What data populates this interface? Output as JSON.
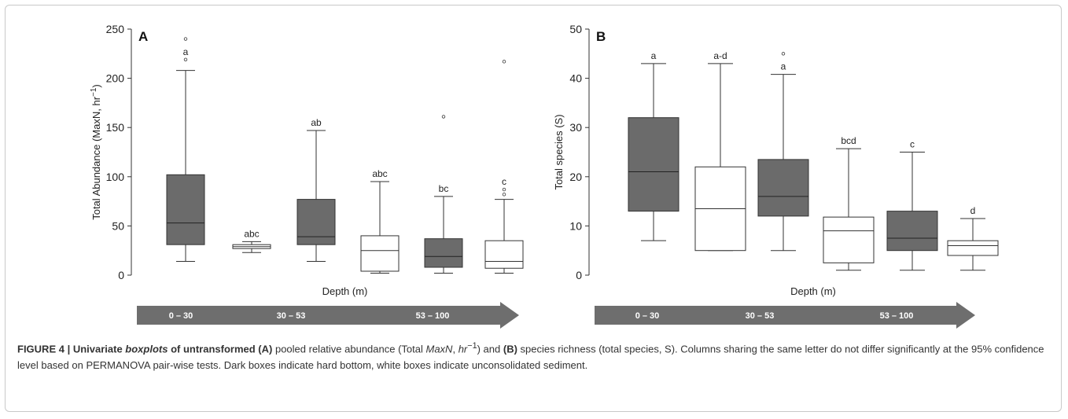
{
  "colors": {
    "hard_bottom": "#6b6b6b",
    "sediment": "#ffffff",
    "arrow": "#6e6e6e"
  },
  "chart_data": [
    {
      "type": "box",
      "panel_label": "A",
      "ylabel": "Total Abundance (MaxN, hr",
      "ylabel_sup": "−1",
      "ylabel_close": ")",
      "xlabel": "Depth (m)",
      "ylim": [
        0,
        250
      ],
      "yticks": [
        0,
        50,
        100,
        150,
        200,
        250
      ],
      "depth_bins": [
        "0 – 30",
        "30 – 53",
        "53 – 100"
      ],
      "series": [
        {
          "depth": "0 – 30",
          "substrate": "hard bottom",
          "min": 14,
          "q1": 31,
          "median": 53,
          "q3": 102,
          "max": 208,
          "outliers": [
            240,
            219
          ],
          "letter": "a"
        },
        {
          "depth": "0 – 30",
          "substrate": "unconsolidated sediment",
          "min": 23,
          "q1": 27,
          "median": 29,
          "q3": 31,
          "max": 34,
          "outliers": [],
          "letter": "abc"
        },
        {
          "depth": "30 – 53",
          "substrate": "hard bottom",
          "min": 14,
          "q1": 31,
          "median": 39,
          "q3": 77,
          "max": 147,
          "outliers": [],
          "letter": "ab"
        },
        {
          "depth": "30 – 53",
          "substrate": "unconsolidated sediment",
          "min": 2,
          "q1": 4,
          "median": 25,
          "q3": 40,
          "max": 95,
          "outliers": [],
          "letter": "abc"
        },
        {
          "depth": "53 – 100",
          "substrate": "hard bottom",
          "min": 2,
          "q1": 8,
          "median": 19,
          "q3": 37,
          "max": 80,
          "outliers": [
            161
          ],
          "letter": "bc"
        },
        {
          "depth": "53 – 100",
          "substrate": "unconsolidated sediment",
          "min": 2,
          "q1": 7,
          "median": 14,
          "q3": 35,
          "max": 77,
          "outliers": [
            87,
            82,
            217
          ],
          "letter": "c"
        }
      ]
    },
    {
      "type": "box",
      "panel_label": "B",
      "ylabel": "Total species (S)",
      "xlabel": "Depth (m)",
      "ylim": [
        0,
        50
      ],
      "yticks": [
        0,
        10,
        20,
        30,
        40,
        50
      ],
      "depth_bins": [
        "0 – 30",
        "30 – 53",
        "53 – 100"
      ],
      "series": [
        {
          "depth": "0 – 30",
          "substrate": "hard bottom",
          "min": 7,
          "q1": 13,
          "median": 21,
          "q3": 32,
          "max": 43,
          "outliers": [],
          "letter": "a"
        },
        {
          "depth": "0 – 30",
          "substrate": "unconsolidated sediment",
          "min": 5,
          "q1": 5,
          "median": 13.5,
          "q3": 22,
          "max": 43,
          "outliers": [],
          "letter": "a-d"
        },
        {
          "depth": "30 – 53",
          "substrate": "hard bottom",
          "min": 5,
          "q1": 12,
          "median": 16,
          "q3": 23.5,
          "max": 40.8,
          "outliers": [
            45
          ],
          "letter": "a"
        },
        {
          "depth": "30 – 53",
          "substrate": "unconsolidated sediment",
          "min": 1,
          "q1": 2.5,
          "median": 9,
          "q3": 11.8,
          "max": 25.7,
          "outliers": [],
          "letter": "bcd"
        },
        {
          "depth": "53 – 100",
          "substrate": "hard bottom",
          "min": 1,
          "q1": 5,
          "median": 7.5,
          "q3": 13,
          "max": 25,
          "outliers": [],
          "letter": "c"
        },
        {
          "depth": "53 – 100",
          "substrate": "unconsolidated sediment",
          "min": 1,
          "q1": 4,
          "median": 6,
          "q3": 7,
          "max": 11.5,
          "outliers": [],
          "letter": "d"
        }
      ]
    }
  ],
  "caption": {
    "figure_label": "FIGURE 4 | Univariate ",
    "boxplots_word": "boxplots",
    "title_rest": " of untransformed (A)",
    "text1": " pooled relative abundance (Total ",
    "maxn": "MaxN",
    "comma": ", ",
    "hr": "hr",
    "sup": "−1",
    "text2": ") and ",
    "b_label": "(B)",
    "text3": " species richness (total species, S). Columns sharing the same letter do not differ significantly at the 95% confidence level based on PERMANOVA pair-wise tests. Dark boxes indicate hard bottom, white boxes indicate unconsolidated sediment."
  }
}
